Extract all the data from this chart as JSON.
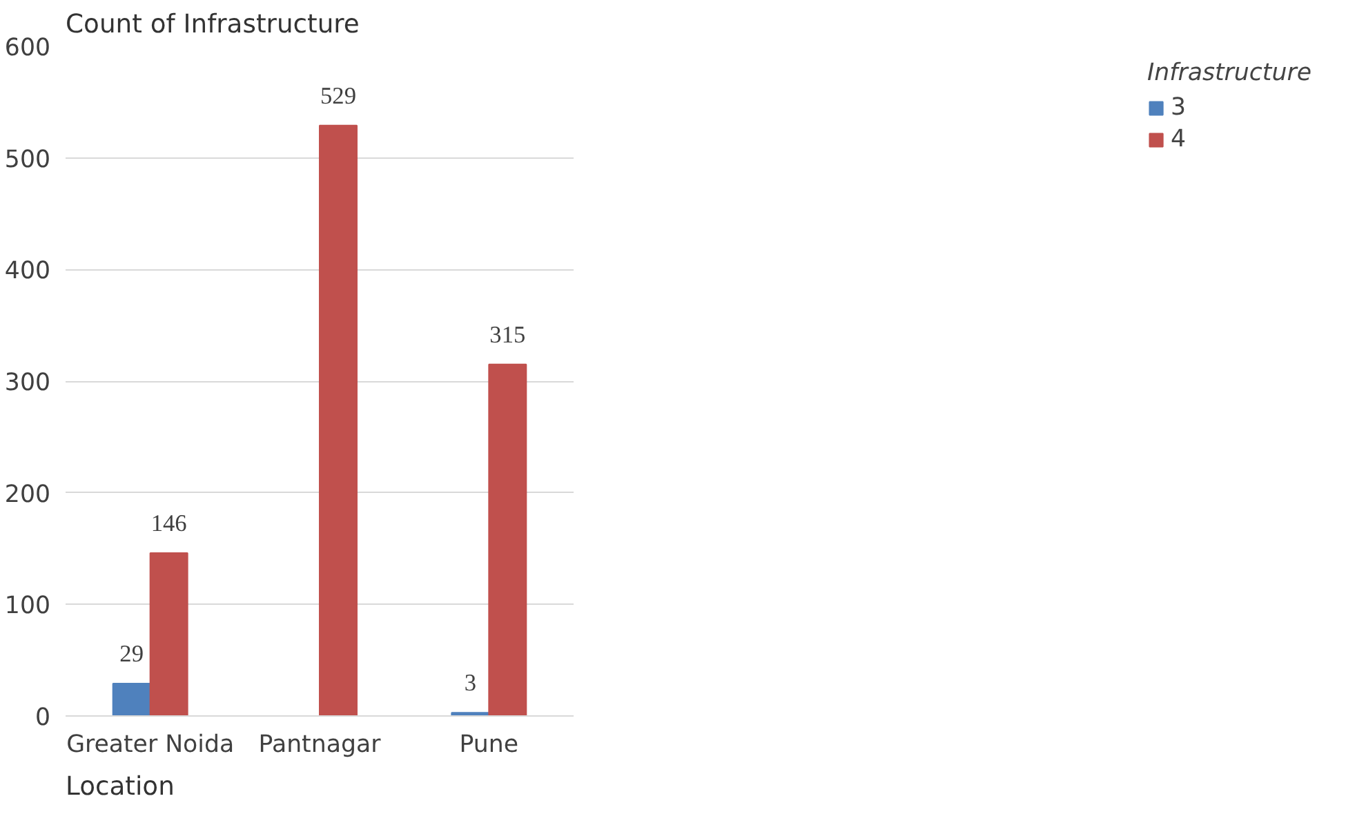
{
  "chart_data": {
    "type": "bar",
    "title": "Count of Infrastructure",
    "xlabel": "Location",
    "legend_title": "Infrastructure",
    "categories": [
      "Greater Noida",
      "Pantnagar",
      "Pune"
    ],
    "series": [
      {
        "name": "3",
        "color": "#4f81bd",
        "values": [
          29,
          null,
          3
        ]
      },
      {
        "name": "4",
        "color": "#c0504d",
        "values": [
          146,
          529,
          315
        ]
      }
    ],
    "ylim": [
      0,
      600
    ],
    "yticks": [
      0,
      100,
      200,
      300,
      400,
      500,
      600
    ],
    "grid": "y",
    "legend": "right",
    "data_labels": true
  }
}
